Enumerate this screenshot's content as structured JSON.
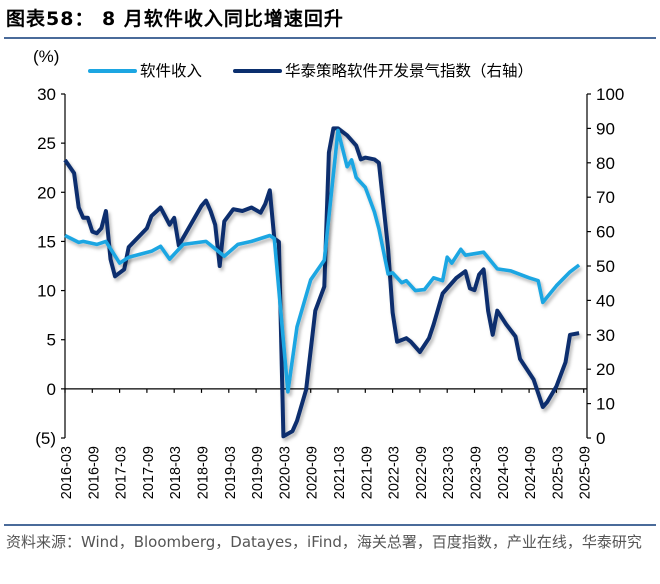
{
  "title": "图表58：  8 月软件收入同比增速回升",
  "source": "资料来源：Wind，Bloomberg，Datayes，iFind，海关总署，百度指数，产业在线，华泰研究",
  "chart_data": {
    "type": "line",
    "title": "图表58：  8 月软件收入同比增速回升",
    "left_axis_unit": "(%)",
    "ylim_left": [
      -5,
      30
    ],
    "yticks_left": [
      "(5)",
      "0",
      "5",
      "10",
      "15",
      "20",
      "25",
      "30"
    ],
    "ylim_right": [
      0,
      100
    ],
    "yticks_right": [
      "0",
      "10",
      "20",
      "30",
      "40",
      "50",
      "60",
      "70",
      "80",
      "90",
      "100"
    ],
    "xticks": [
      "2016-03",
      "2016-09",
      "2017-03",
      "2017-09",
      "2018-03",
      "2018-09",
      "2019-03",
      "2019-09",
      "2020-03",
      "2020-09",
      "2021-03",
      "2021-09",
      "2022-03",
      "2022-09",
      "2023-03",
      "2023-09",
      "2024-03",
      "2024-09",
      "2025-03",
      "2025-09"
    ],
    "grid": false,
    "legend_position": "top",
    "series": [
      {
        "name": "软件收入",
        "axis": "left",
        "color": "#1CA6E2",
        "points": [
          [
            "2016-03",
            15.6
          ],
          [
            "2016-06",
            14.9
          ],
          [
            "2016-07",
            15.0
          ],
          [
            "2016-10",
            14.7
          ],
          [
            "2016-12",
            15.0
          ],
          [
            "2017-03",
            12.8
          ],
          [
            "2017-05",
            13.4
          ],
          [
            "2017-10",
            14.0
          ],
          [
            "2017-12",
            14.5
          ],
          [
            "2018-02",
            13.2
          ],
          [
            "2018-05",
            14.7
          ],
          [
            "2018-10",
            15.0
          ],
          [
            "2019-02",
            13.5
          ],
          [
            "2019-05",
            14.7
          ],
          [
            "2019-08",
            15.0
          ],
          [
            "2019-12",
            15.6
          ],
          [
            "2020-01",
            15.3
          ],
          [
            "2020-04",
            -0.3
          ],
          [
            "2020-06",
            6.3
          ],
          [
            "2020-09",
            11.1
          ],
          [
            "2020-12",
            13.1
          ],
          [
            "2021-03",
            26.3
          ],
          [
            "2021-05",
            22.6
          ],
          [
            "2021-06",
            23.3
          ],
          [
            "2021-07",
            21.5
          ],
          [
            "2021-09",
            20.5
          ],
          [
            "2021-11",
            18.0
          ],
          [
            "2021-12",
            16.3
          ],
          [
            "2022-02",
            11.7
          ],
          [
            "2022-03",
            11.8
          ],
          [
            "2022-05",
            10.8
          ],
          [
            "2022-06",
            11.0
          ],
          [
            "2022-08",
            10.0
          ],
          [
            "2022-10",
            10.1
          ],
          [
            "2022-12",
            11.3
          ],
          [
            "2023-02",
            11.0
          ],
          [
            "2023-03",
            13.4
          ],
          [
            "2023-04",
            12.8
          ],
          [
            "2023-06",
            14.2
          ],
          [
            "2023-07",
            13.6
          ],
          [
            "2023-11",
            13.9
          ],
          [
            "2024-02",
            12.2
          ],
          [
            "2024-05",
            12.0
          ],
          [
            "2024-09",
            11.3
          ],
          [
            "2024-11",
            11.0
          ],
          [
            "2024-12",
            8.8
          ],
          [
            "2025-03",
            10.5
          ],
          [
            "2025-06",
            11.9
          ],
          [
            "2025-08",
            12.6
          ]
        ]
      },
      {
        "name": "华泰策略软件开发景气指数（右轴）",
        "axis": "right",
        "color": "#0B2F6E",
        "points": [
          [
            "2016-03",
            80.8
          ],
          [
            "2016-05",
            77
          ],
          [
            "2016-06",
            67
          ],
          [
            "2016-07",
            64
          ],
          [
            "2016-08",
            64
          ],
          [
            "2016-09",
            60
          ],
          [
            "2016-10",
            59.5
          ],
          [
            "2016-11",
            61
          ],
          [
            "2016-12",
            66
          ],
          [
            "2017-01",
            52
          ],
          [
            "2017-02",
            47
          ],
          [
            "2017-04",
            49
          ],
          [
            "2017-05",
            55.5
          ],
          [
            "2017-09",
            61
          ],
          [
            "2017-10",
            64.5
          ],
          [
            "2017-12",
            67
          ],
          [
            "2018-02",
            62
          ],
          [
            "2018-03",
            64
          ],
          [
            "2018-04",
            56
          ],
          [
            "2018-09",
            67.5
          ],
          [
            "2018-10",
            69
          ],
          [
            "2018-11",
            66
          ],
          [
            "2018-12",
            62
          ],
          [
            "2019-01",
            50
          ],
          [
            "2019-02",
            63
          ],
          [
            "2019-04",
            66.5
          ],
          [
            "2019-06",
            66
          ],
          [
            "2019-08",
            67
          ],
          [
            "2019-10",
            65.5
          ],
          [
            "2019-11",
            68
          ],
          [
            "2019-12",
            72
          ],
          [
            "2020-01",
            58
          ],
          [
            "2020-02",
            57
          ],
          [
            "2020-03",
            0.5
          ],
          [
            "2020-05",
            2
          ],
          [
            "2020-06",
            5
          ],
          [
            "2020-08",
            14
          ],
          [
            "2020-10",
            37
          ],
          [
            "2020-12",
            44
          ],
          [
            "2021-01",
            83
          ],
          [
            "2021-02",
            90
          ],
          [
            "2021-03",
            90
          ],
          [
            "2021-05",
            88
          ],
          [
            "2021-07",
            85
          ],
          [
            "2021-08",
            81
          ],
          [
            "2021-09",
            81.5
          ],
          [
            "2021-11",
            81
          ],
          [
            "2021-12",
            80
          ],
          [
            "2022-02",
            55
          ],
          [
            "2022-03",
            36.5
          ],
          [
            "2022-04",
            28
          ],
          [
            "2022-06",
            29
          ],
          [
            "2022-07",
            28
          ],
          [
            "2022-09",
            25
          ],
          [
            "2022-11",
            29
          ],
          [
            "2022-12",
            33
          ],
          [
            "2023-02",
            42
          ],
          [
            "2023-05",
            46.5
          ],
          [
            "2023-07",
            48.5
          ],
          [
            "2023-08",
            43.5
          ],
          [
            "2023-09",
            43
          ],
          [
            "2023-10",
            47.5
          ],
          [
            "2023-11",
            49
          ],
          [
            "2023-12",
            37
          ],
          [
            "2024-01",
            30
          ],
          [
            "2024-02",
            37
          ],
          [
            "2024-04",
            33
          ],
          [
            "2024-06",
            29.5
          ],
          [
            "2024-07",
            23
          ],
          [
            "2024-10",
            17
          ],
          [
            "2024-12",
            9
          ],
          [
            "2025-01",
            10.5
          ],
          [
            "2025-03",
            15
          ],
          [
            "2025-05",
            22
          ],
          [
            "2025-06",
            30
          ],
          [
            "2025-08",
            30.5
          ]
        ]
      }
    ]
  }
}
